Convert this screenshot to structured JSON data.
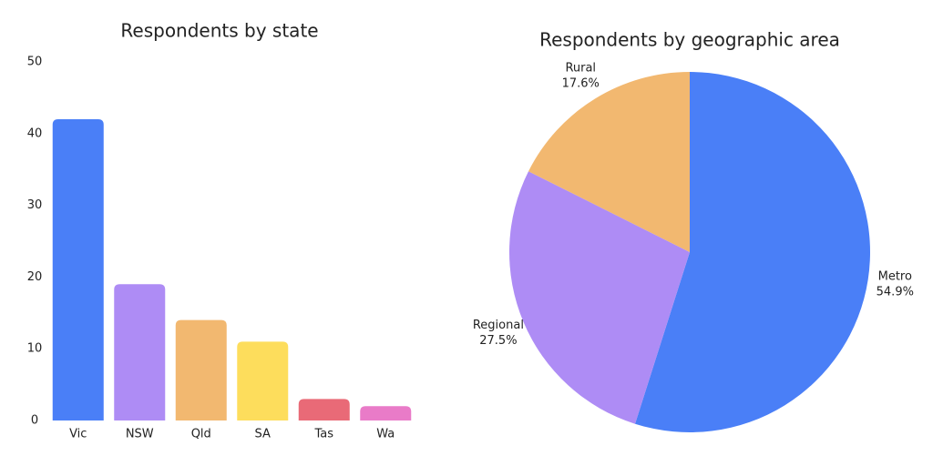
{
  "chart_data": [
    {
      "type": "bar",
      "title": "Respondents by state",
      "categories": [
        "Vic",
        "NSW",
        "Qld",
        "SA",
        "Tas",
        "Wa"
      ],
      "values": [
        42,
        19,
        14,
        11,
        3,
        2
      ],
      "colors": [
        "#4a7ff7",
        "#ae8cf5",
        "#f2b870",
        "#fddd5c",
        "#e96a77",
        "#e97bc8"
      ],
      "ylim": [
        0,
        50
      ],
      "yticks": [
        0,
        10,
        20,
        30,
        40,
        50
      ],
      "grid": false
    },
    {
      "type": "pie",
      "title": "Respondents by geographic area",
      "categories": [
        "Metro",
        "Regional",
        "Rural"
      ],
      "values": [
        54.9,
        27.5,
        17.6
      ],
      "value_labels": [
        "54.9%",
        "27.5%",
        "17.6%"
      ],
      "colors": [
        "#4a7ff7",
        "#ae8cf5",
        "#f2b870"
      ]
    }
  ]
}
